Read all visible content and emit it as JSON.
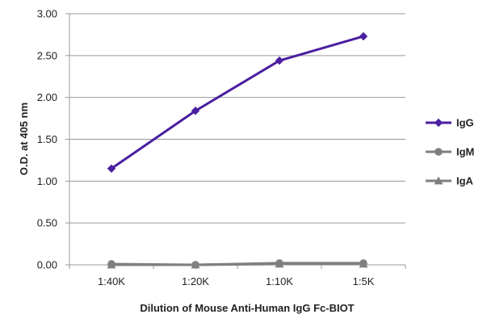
{
  "chart_data": {
    "type": "line",
    "title": "",
    "xlabel": "Dilution of Mouse Anti-Human IgG Fc-BIOT",
    "ylabel": "O.D. at 405 nm",
    "categories": [
      "1:40K",
      "1:20K",
      "1:10K",
      "1:5K"
    ],
    "ylim": [
      0,
      3
    ],
    "yticks": [
      "0.00",
      "0.50",
      "1.00",
      "1.50",
      "2.00",
      "2.50",
      "3.00"
    ],
    "grid": true,
    "legend_position": "right",
    "series": [
      {
        "name": "IgG",
        "values": [
          1.15,
          1.84,
          2.44,
          2.73
        ],
        "color": "#4b1fa0",
        "marker": "diamond"
      },
      {
        "name": "IgM",
        "values": [
          0.01,
          0.0,
          0.02,
          0.02
        ],
        "color": "#7f7f7f",
        "marker": "circle"
      },
      {
        "name": "IgA",
        "values": [
          0.0,
          0.0,
          0.01,
          0.01
        ],
        "color": "#7f7f7f",
        "marker": "triangle"
      }
    ]
  }
}
